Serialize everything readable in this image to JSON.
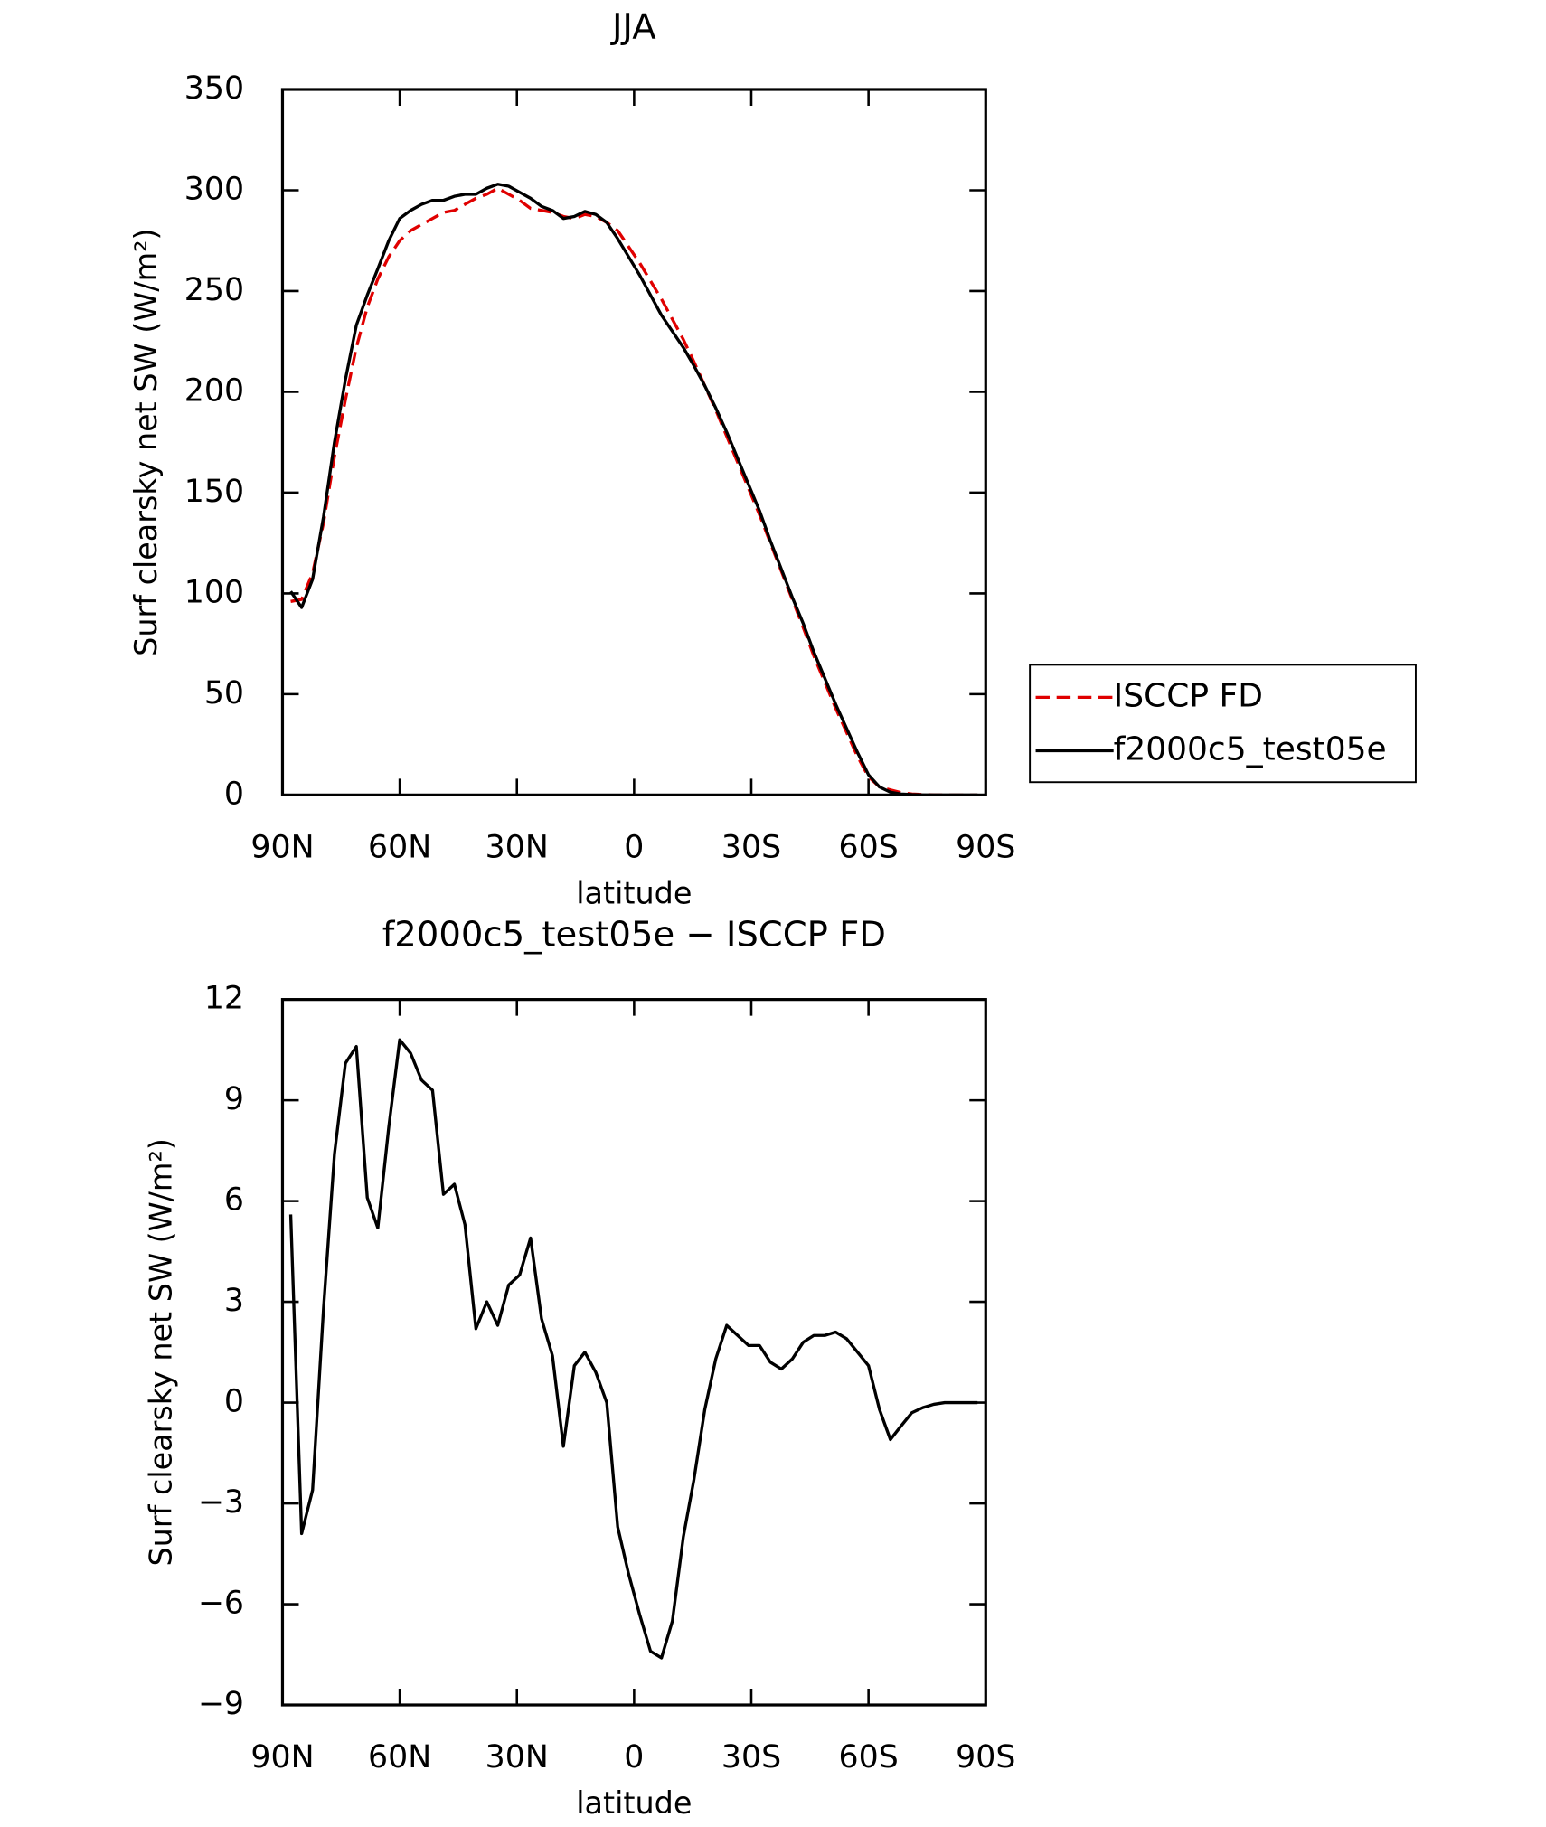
{
  "chart_data": [
    {
      "type": "line",
      "title": "JJA",
      "x_label": "latitude",
      "y_label": "Surf clearsky net SW (W/m²)",
      "x": [
        87.9,
        85.1,
        82.3,
        79.5,
        76.7,
        73.9,
        71.1,
        68.3,
        65.6,
        62.8,
        60.0,
        57.2,
        54.4,
        51.6,
        48.8,
        46.0,
        43.3,
        40.5,
        37.7,
        34.9,
        32.1,
        29.3,
        26.5,
        23.7,
        20.9,
        18.1,
        15.3,
        12.6,
        9.8,
        7.0,
        4.2,
        1.4,
        -1.4,
        -4.2,
        -7.0,
        -9.8,
        -12.6,
        -15.3,
        -18.1,
        -20.9,
        -23.7,
        -26.5,
        -29.3,
        -32.1,
        -34.9,
        -37.7,
        -40.5,
        -43.3,
        -46.0,
        -48.8,
        -51.6,
        -54.4,
        -57.2,
        -60.0,
        -62.8,
        -65.6,
        -68.3,
        -71.1,
        -73.9,
        -76.7,
        -79.5,
        -82.3,
        -85.1,
        -87.9
      ],
      "series": [
        {
          "name": "ISCCP FD",
          "color": "#e00000",
          "dashed": true,
          "values": [
            96,
            97,
            110,
            135,
            168,
            196,
            222,
            242,
            256,
            267,
            275,
            280,
            283,
            286,
            289,
            290,
            293,
            296,
            298,
            301,
            298,
            295,
            291,
            290,
            289,
            287,
            286,
            288,
            287,
            284,
            280,
            272,
            264,
            255,
            246,
            236,
            226,
            215,
            203,
            191,
            178,
            165,
            152,
            139,
            125,
            111,
            97,
            83,
            69,
            56,
            43,
            31,
            19,
            9,
            4,
            2.5,
            1.2,
            0.5,
            0.2,
            0.05,
            0,
            0,
            0,
            0
          ]
        },
        {
          "name": "f2000c5_test05e",
          "color": "#000000",
          "dashed": false,
          "values": [
            101,
            93,
            107,
            138,
            175,
            206,
            233,
            248,
            261,
            275,
            286,
            290,
            293,
            295,
            295,
            297,
            298,
            298,
            301,
            303,
            302,
            299,
            296,
            292,
            290,
            286,
            287,
            289.5,
            288,
            284,
            276,
            267,
            258,
            248,
            238,
            230,
            222,
            213,
            203,
            192,
            180,
            167,
            154,
            141,
            126,
            112,
            98,
            85,
            71,
            58,
            45,
            33,
            21,
            10,
            4,
            1.4,
            0.5,
            0.2,
            0.05,
            0,
            0,
            0,
            0,
            0
          ]
        }
      ],
      "xlim": [
        90,
        -90
      ],
      "xticks": [
        {
          "value": 90,
          "label": "90N"
        },
        {
          "value": 60,
          "label": "60N"
        },
        {
          "value": 30,
          "label": "30N"
        },
        0,
        {
          "value": -30,
          "label": "30S"
        },
        {
          "value": -60,
          "label": "60S"
        },
        {
          "value": -90,
          "label": "90S"
        }
      ],
      "ylim": [
        0,
        350
      ],
      "yticks": [
        0,
        50,
        100,
        150,
        200,
        250,
        300,
        350
      ],
      "legend": "right"
    },
    {
      "type": "line",
      "title": "f2000c5_test05e − ISCCP FD",
      "x_label": "latitude",
      "y_label": "Surf clearsky net SW (W/m²)",
      "x": [
        87.9,
        85.1,
        82.3,
        79.5,
        76.7,
        73.9,
        71.1,
        68.3,
        65.6,
        62.8,
        60.0,
        57.2,
        54.4,
        51.6,
        48.8,
        46.0,
        43.3,
        40.5,
        37.7,
        34.9,
        32.1,
        29.3,
        26.5,
        23.7,
        20.9,
        18.1,
        15.3,
        12.6,
        9.8,
        7.0,
        4.2,
        1.4,
        -1.4,
        -4.2,
        -7.0,
        -9.8,
        -12.6,
        -15.3,
        -18.1,
        -20.9,
        -23.7,
        -26.5,
        -29.3,
        -32.1,
        -34.9,
        -37.7,
        -40.5,
        -43.3,
        -46.0,
        -48.8,
        -51.6,
        -54.4,
        -57.2,
        -60.0,
        -62.8,
        -65.6,
        -68.3,
        -71.1,
        -73.9,
        -76.7,
        -79.5,
        -82.3,
        -85.1,
        -87.9
      ],
      "series": [
        {
          "color": "#000000",
          "dashed": false,
          "values": [
            5.6,
            -3.9,
            -2.6,
            2.8,
            7.4,
            10.1,
            10.6,
            6.1,
            5.2,
            8.2,
            10.8,
            10.4,
            9.6,
            9.3,
            6.2,
            6.5,
            5.3,
            2.2,
            3.0,
            2.3,
            3.5,
            3.8,
            4.9,
            2.5,
            1.4,
            -1.3,
            1.1,
            1.5,
            0.9,
            0.0,
            -3.7,
            -5.1,
            -6.3,
            -7.4,
            -7.6,
            -6.5,
            -4.0,
            -2.3,
            -0.2,
            1.3,
            2.3,
            2.0,
            1.7,
            1.7,
            1.2,
            1.0,
            1.3,
            1.8,
            2.0,
            2.0,
            2.1,
            1.9,
            1.5,
            1.1,
            -0.2,
            -1.1,
            -0.7,
            -0.3,
            -0.15,
            -0.05,
            0,
            0,
            0,
            0
          ]
        }
      ],
      "xlim": [
        90,
        -90
      ],
      "xticks": [
        {
          "value": 90,
          "label": "90N"
        },
        {
          "value": 60,
          "label": "60N"
        },
        {
          "value": 30,
          "label": "30N"
        },
        0,
        {
          "value": -30,
          "label": "30S"
        },
        {
          "value": -60,
          "label": "60S"
        },
        {
          "value": -90,
          "label": "90S"
        }
      ],
      "ylim": [
        -9,
        12
      ],
      "yticks": [
        {
          "value": -9,
          "label": "−9"
        },
        {
          "value": -6,
          "label": "−6"
        },
        {
          "value": -3,
          "label": "−3"
        },
        0,
        3,
        6,
        9,
        12
      ]
    }
  ]
}
